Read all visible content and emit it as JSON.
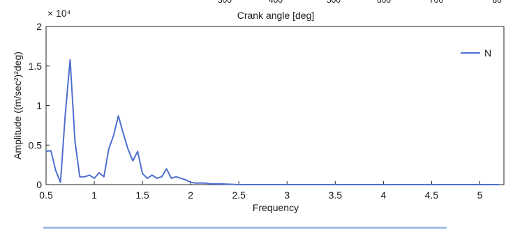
{
  "chart_data": {
    "type": "line",
    "xlabel": "Frequency",
    "ylabel": "Amplitude ((m/sec²)²deg)",
    "top_label": "Crank angle [deg]",
    "top_partial_ticks": [
      "300",
      "400",
      "500",
      "600",
      "700",
      "80"
    ],
    "y_multiplier": "× 10⁴",
    "xlim": [
      0.5,
      5.25
    ],
    "ylim": [
      0,
      2
    ],
    "x_ticks": [
      0.5,
      1,
      1.5,
      2,
      2.5,
      3,
      3.5,
      4,
      4.5,
      5
    ],
    "x_tick_labels": [
      "0.5",
      "1",
      "1.5",
      "2",
      "2.5",
      "3",
      "3.5",
      "4",
      "4.5",
      "5"
    ],
    "y_ticks": [
      0,
      0.5,
      1,
      1.5,
      2
    ],
    "y_tick_labels": [
      "0",
      "0.5",
      "1",
      "1.5",
      "2"
    ],
    "legend_position": "top-right",
    "grid": false,
    "series": [
      {
        "name": "N",
        "color": "#4f6fd0",
        "x": [
          0.5,
          0.55,
          0.6,
          0.65,
          0.7,
          0.75,
          0.8,
          0.85,
          0.9,
          0.95,
          1.0,
          1.05,
          1.1,
          1.15,
          1.2,
          1.25,
          1.3,
          1.35,
          1.4,
          1.45,
          1.5,
          1.55,
          1.6,
          1.65,
          1.7,
          1.75,
          1.8,
          1.85,
          1.9,
          1.95,
          2.0,
          2.05,
          2.1,
          2.15,
          2.2,
          2.3,
          2.5,
          3.0,
          3.5,
          4.0,
          4.5,
          5.0,
          5.2
        ],
        "y": [
          0.42,
          0.43,
          0.18,
          0.03,
          0.9,
          1.58,
          0.55,
          0.1,
          0.1,
          0.12,
          0.08,
          0.15,
          0.1,
          0.45,
          0.62,
          0.87,
          0.65,
          0.45,
          0.3,
          0.42,
          0.14,
          0.08,
          0.12,
          0.08,
          0.1,
          0.2,
          0.08,
          0.1,
          0.08,
          0.06,
          0.03,
          0.02,
          0.02,
          0.02,
          0.01,
          0.01,
          0.0,
          0.0,
          0.0,
          0.0,
          0.0,
          0.0,
          0.0
        ]
      }
    ]
  }
}
